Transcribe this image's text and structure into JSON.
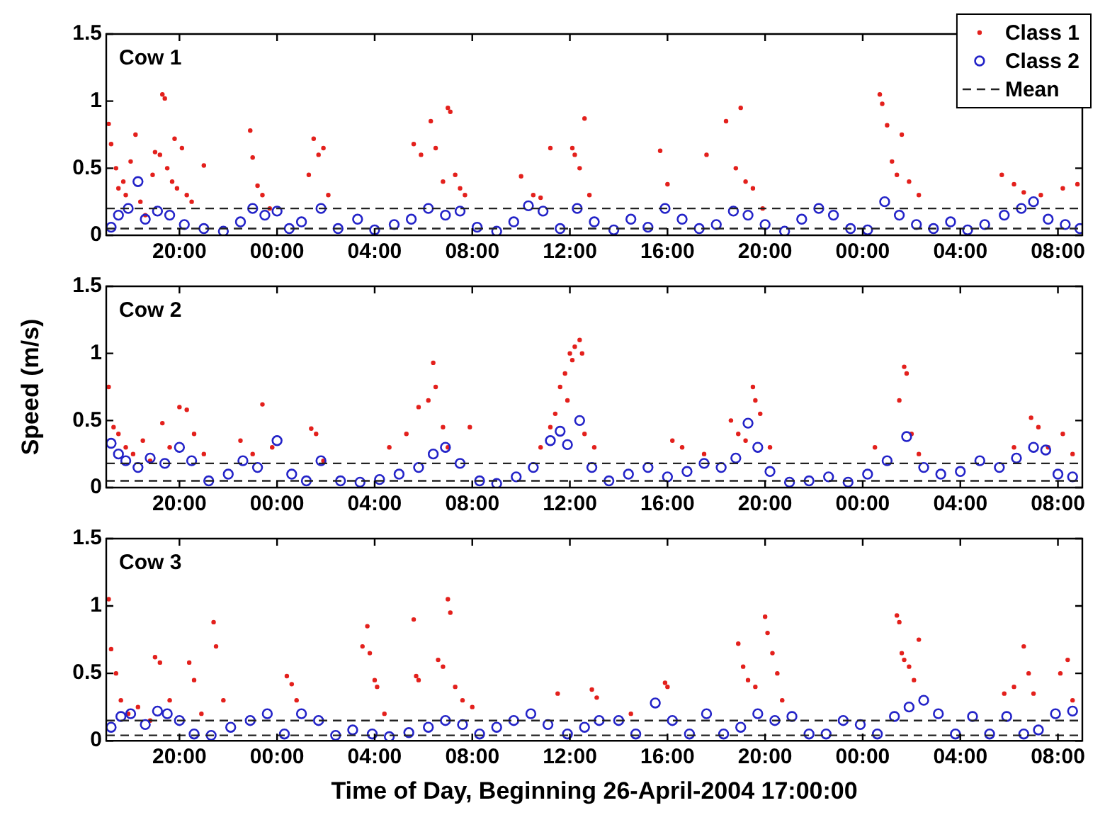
{
  "chart_data": [
    {
      "type": "scatter",
      "title": "Cow 1",
      "xlim": [
        "2004-04-26T17:00",
        "2004-04-28T09:00"
      ],
      "xticks": [
        {
          "value": "2004-04-26T20:00",
          "label": "20:00"
        },
        {
          "value": "2004-04-27T00:00",
          "label": "00:00"
        },
        {
          "value": "2004-04-27T04:00",
          "label": "04:00"
        },
        {
          "value": "2004-04-27T08:00",
          "label": "08:00"
        },
        {
          "value": "2004-04-27T12:00",
          "label": "12:00"
        },
        {
          "value": "2004-04-27T16:00",
          "label": "16:00"
        },
        {
          "value": "2004-04-27T20:00",
          "label": "20:00"
        },
        {
          "value": "2004-04-28T00:00",
          "label": "00:00"
        },
        {
          "value": "2004-04-28T04:00",
          "label": "04:00"
        },
        {
          "value": "2004-04-28T08:00",
          "label": "08:00"
        }
      ],
      "ylim": [
        0,
        1.5
      ],
      "yticks": [
        0,
        0.5,
        1,
        1.5
      ],
      "marker": "circle",
      "legend": "top right",
      "series": [
        {
          "name": "Class 1",
          "color": "#e3201c",
          "x": [
            "2004-04-26T17:06",
            "2004-04-26T17:12",
            "2004-04-26T17:24",
            "2004-04-26T17:30",
            "2004-04-26T17:42",
            "2004-04-26T17:48",
            "2004-04-26T18:00",
            "2004-04-26T18:12",
            "2004-04-26T18:24",
            "2004-04-26T18:36",
            "2004-04-26T18:54",
            "2004-04-26T19:00",
            "2004-04-26T19:12",
            "2004-04-26T19:18",
            "2004-04-26T19:24",
            "2004-04-26T19:30",
            "2004-04-26T19:42",
            "2004-04-26T19:48",
            "2004-04-26T19:54",
            "2004-04-26T20:06",
            "2004-04-26T20:18",
            "2004-04-26T20:30",
            "2004-04-26T21:00",
            "2004-04-26T22:54",
            "2004-04-26T23:00",
            "2004-04-26T23:12",
            "2004-04-26T23:24",
            "2004-04-26T23:42",
            "2004-04-27T01:18",
            "2004-04-27T01:30",
            "2004-04-27T01:42",
            "2004-04-27T01:54",
            "2004-04-27T02:06",
            "2004-04-27T05:36",
            "2004-04-27T05:54",
            "2004-04-27T06:18",
            "2004-04-27T06:30",
            "2004-04-27T06:48",
            "2004-04-27T07:00",
            "2004-04-27T07:06",
            "2004-04-27T07:18",
            "2004-04-27T07:30",
            "2004-04-27T07:42",
            "2004-04-27T10:00",
            "2004-04-27T10:30",
            "2004-04-27T10:48",
            "2004-04-27T11:12",
            "2004-04-27T12:06",
            "2004-04-27T12:12",
            "2004-04-27T12:24",
            "2004-04-27T12:36",
            "2004-04-27T12:48",
            "2004-04-27T15:42",
            "2004-04-27T16:00",
            "2004-04-27T17:36",
            "2004-04-27T18:24",
            "2004-04-27T18:48",
            "2004-04-27T19:00",
            "2004-04-27T19:12",
            "2004-04-27T19:30",
            "2004-04-27T19:54",
            "2004-04-28T00:42",
            "2004-04-28T00:48",
            "2004-04-28T01:00",
            "2004-04-28T01:12",
            "2004-04-28T01:24",
            "2004-04-28T01:36",
            "2004-04-28T01:54",
            "2004-04-28T02:18",
            "2004-04-28T05:42",
            "2004-04-28T06:12",
            "2004-04-28T06:36",
            "2004-04-28T07:18",
            "2004-04-28T08:12",
            "2004-04-28T08:48"
          ],
          "values": [
            0.83,
            0.68,
            0.5,
            0.35,
            0.4,
            0.3,
            0.55,
            0.75,
            0.25,
            0.15,
            0.45,
            0.62,
            0.6,
            1.05,
            1.02,
            0.5,
            0.4,
            0.72,
            0.35,
            0.65,
            0.3,
            0.25,
            0.52,
            0.78,
            0.58,
            0.37,
            0.3,
            0.2,
            0.45,
            0.72,
            0.6,
            0.65,
            0.3,
            0.68,
            0.6,
            0.85,
            0.65,
            0.4,
            0.95,
            0.92,
            0.45,
            0.35,
            0.3,
            0.44,
            0.3,
            0.28,
            0.65,
            0.65,
            0.6,
            0.5,
            0.87,
            0.3,
            0.63,
            0.38,
            0.6,
            0.85,
            0.5,
            0.95,
            0.4,
            0.35,
            0.2,
            1.05,
            0.98,
            0.82,
            0.55,
            0.45,
            0.75,
            0.4,
            0.3,
            0.45,
            0.38,
            0.32,
            0.3,
            0.35,
            0.38
          ]
        },
        {
          "name": "Class 2",
          "color": "#2323c8",
          "x": [
            "2004-04-26T17:12",
            "2004-04-26T17:30",
            "2004-04-26T17:54",
            "2004-04-26T18:18",
            "2004-04-26T18:36",
            "2004-04-26T19:06",
            "2004-04-26T19:36",
            "2004-04-26T20:12",
            "2004-04-26T21:00",
            "2004-04-26T21:48",
            "2004-04-26T22:30",
            "2004-04-26T23:00",
            "2004-04-26T23:30",
            "2004-04-27T00:00",
            "2004-04-27T00:30",
            "2004-04-27T01:00",
            "2004-04-27T01:48",
            "2004-04-27T02:30",
            "2004-04-27T03:18",
            "2004-04-27T04:00",
            "2004-04-27T04:48",
            "2004-04-27T05:30",
            "2004-04-27T06:12",
            "2004-04-27T06:54",
            "2004-04-27T07:30",
            "2004-04-27T08:12",
            "2004-04-27T09:00",
            "2004-04-27T09:42",
            "2004-04-27T10:18",
            "2004-04-27T10:54",
            "2004-04-27T11:36",
            "2004-04-27T12:18",
            "2004-04-27T13:00",
            "2004-04-27T13:48",
            "2004-04-27T14:30",
            "2004-04-27T15:12",
            "2004-04-27T15:54",
            "2004-04-27T16:36",
            "2004-04-27T17:18",
            "2004-04-27T18:00",
            "2004-04-27T18:42",
            "2004-04-27T19:18",
            "2004-04-27T20:00",
            "2004-04-27T20:48",
            "2004-04-27T21:30",
            "2004-04-27T22:12",
            "2004-04-27T22:48",
            "2004-04-27T23:30",
            "2004-04-28T00:12",
            "2004-04-28T00:54",
            "2004-04-28T01:30",
            "2004-04-28T02:12",
            "2004-04-28T02:54",
            "2004-04-28T03:36",
            "2004-04-28T04:18",
            "2004-04-28T05:00",
            "2004-04-28T05:48",
            "2004-04-28T06:30",
            "2004-04-28T07:00",
            "2004-04-28T07:36",
            "2004-04-28T08:18",
            "2004-04-28T08:54"
          ],
          "values": [
            0.06,
            0.15,
            0.2,
            0.4,
            0.12,
            0.18,
            0.15,
            0.08,
            0.05,
            0.03,
            0.1,
            0.2,
            0.15,
            0.18,
            0.05,
            0.1,
            0.2,
            0.05,
            0.12,
            0.04,
            0.08,
            0.12,
            0.2,
            0.15,
            0.18,
            0.06,
            0.03,
            0.1,
            0.22,
            0.18,
            0.05,
            0.2,
            0.1,
            0.04,
            0.12,
            0.06,
            0.2,
            0.12,
            0.05,
            0.08,
            0.18,
            0.15,
            0.08,
            0.03,
            0.12,
            0.2,
            0.15,
            0.05,
            0.04,
            0.25,
            0.15,
            0.08,
            0.05,
            0.1,
            0.04,
            0.08,
            0.15,
            0.2,
            0.25,
            0.12,
            0.08,
            0.05
          ]
        }
      ],
      "ref_lines": [
        {
          "axis": "y",
          "value": 0.2,
          "label": "Mean",
          "color": "#222222",
          "line_style": "dashed"
        },
        {
          "axis": "y",
          "value": 0.05,
          "color": "#222222",
          "line_style": "dashed"
        }
      ]
    },
    {
      "type": "scatter",
      "title": "Cow 2",
      "ylabel": "Speed (m/s)",
      "xlim": [
        "2004-04-26T17:00",
        "2004-04-28T09:00"
      ],
      "xticks": [
        {
          "value": "2004-04-26T20:00",
          "label": "20:00"
        },
        {
          "value": "2004-04-27T00:00",
          "label": "00:00"
        },
        {
          "value": "2004-04-27T04:00",
          "label": "04:00"
        },
        {
          "value": "2004-04-27T08:00",
          "label": "08:00"
        },
        {
          "value": "2004-04-27T12:00",
          "label": "12:00"
        },
        {
          "value": "2004-04-27T16:00",
          "label": "16:00"
        },
        {
          "value": "2004-04-27T20:00",
          "label": "20:00"
        },
        {
          "value": "2004-04-28T00:00",
          "label": "00:00"
        },
        {
          "value": "2004-04-28T04:00",
          "label": "04:00"
        },
        {
          "value": "2004-04-28T08:00",
          "label": "08:00"
        }
      ],
      "ylim": [
        0,
        1.5
      ],
      "yticks": [
        0,
        0.5,
        1,
        1.5
      ],
      "marker": "circle",
      "series": [
        {
          "color": "#e3201c",
          "x": [
            "2004-04-26T17:06",
            "2004-04-26T17:18",
            "2004-04-26T17:30",
            "2004-04-26T17:48",
            "2004-04-26T18:06",
            "2004-04-26T18:30",
            "2004-04-26T18:48",
            "2004-04-26T19:18",
            "2004-04-26T19:36",
            "2004-04-26T20:00",
            "2004-04-26T20:18",
            "2004-04-26T20:36",
            "2004-04-26T21:00",
            "2004-04-26T22:30",
            "2004-04-26T23:00",
            "2004-04-26T23:24",
            "2004-04-26T23:48",
            "2004-04-27T01:24",
            "2004-04-27T01:36",
            "2004-04-27T01:54",
            "2004-04-27T04:36",
            "2004-04-27T05:18",
            "2004-04-27T05:48",
            "2004-04-27T06:12",
            "2004-04-27T06:24",
            "2004-04-27T06:30",
            "2004-04-27T06:48",
            "2004-04-27T07:00",
            "2004-04-27T07:54",
            "2004-04-27T10:48",
            "2004-04-27T11:12",
            "2004-04-27T11:24",
            "2004-04-27T11:36",
            "2004-04-27T11:48",
            "2004-04-27T11:54",
            "2004-04-27T12:00",
            "2004-04-27T12:06",
            "2004-04-27T12:12",
            "2004-04-27T12:24",
            "2004-04-27T12:30",
            "2004-04-27T12:36",
            "2004-04-27T13:00",
            "2004-04-27T16:12",
            "2004-04-27T16:36",
            "2004-04-27T17:30",
            "2004-04-27T18:36",
            "2004-04-27T18:54",
            "2004-04-27T19:12",
            "2004-04-27T19:30",
            "2004-04-27T19:36",
            "2004-04-27T19:48",
            "2004-04-27T20:12",
            "2004-04-28T00:30",
            "2004-04-28T01:30",
            "2004-04-28T01:42",
            "2004-04-28T01:48",
            "2004-04-28T02:00",
            "2004-04-28T02:18",
            "2004-04-28T06:12",
            "2004-04-28T06:54",
            "2004-04-28T07:12",
            "2004-04-28T07:36",
            "2004-04-28T08:12",
            "2004-04-28T08:36"
          ],
          "values": [
            0.75,
            0.45,
            0.4,
            0.3,
            0.25,
            0.35,
            0.2,
            0.48,
            0.3,
            0.6,
            0.58,
            0.4,
            0.25,
            0.35,
            0.25,
            0.62,
            0.3,
            0.44,
            0.4,
            0.2,
            0.3,
            0.4,
            0.6,
            0.65,
            0.93,
            0.75,
            0.45,
            0.3,
            0.45,
            0.3,
            0.45,
            0.55,
            0.75,
            0.85,
            0.65,
            1.0,
            0.95,
            1.05,
            1.1,
            1.0,
            0.4,
            0.3,
            0.35,
            0.3,
            0.25,
            0.5,
            0.4,
            0.35,
            0.75,
            0.65,
            0.55,
            0.3,
            0.3,
            0.65,
            0.9,
            0.85,
            0.4,
            0.25,
            0.3,
            0.52,
            0.45,
            0.3,
            0.4,
            0.25
          ]
        },
        {
          "color": "#2323c8",
          "x": [
            "2004-04-26T17:12",
            "2004-04-26T17:30",
            "2004-04-26T17:48",
            "2004-04-26T18:18",
            "2004-04-26T18:48",
            "2004-04-26T19:24",
            "2004-04-26T20:00",
            "2004-04-26T20:30",
            "2004-04-26T21:12",
            "2004-04-26T22:00",
            "2004-04-26T22:36",
            "2004-04-26T23:12",
            "2004-04-27T00:00",
            "2004-04-27T00:36",
            "2004-04-27T01:12",
            "2004-04-27T01:48",
            "2004-04-27T02:36",
            "2004-04-27T03:24",
            "2004-04-27T04:12",
            "2004-04-27T05:00",
            "2004-04-27T05:48",
            "2004-04-27T06:24",
            "2004-04-27T06:54",
            "2004-04-27T07:30",
            "2004-04-27T08:18",
            "2004-04-27T09:00",
            "2004-04-27T09:48",
            "2004-04-27T10:30",
            "2004-04-27T11:12",
            "2004-04-27T11:36",
            "2004-04-27T11:54",
            "2004-04-27T12:24",
            "2004-04-27T12:54",
            "2004-04-27T13:36",
            "2004-04-27T14:24",
            "2004-04-27T15:12",
            "2004-04-27T16:00",
            "2004-04-27T16:48",
            "2004-04-27T17:30",
            "2004-04-27T18:12",
            "2004-04-27T18:48",
            "2004-04-27T19:18",
            "2004-04-27T19:42",
            "2004-04-27T20:12",
            "2004-04-27T21:00",
            "2004-04-27T21:48",
            "2004-04-27T22:36",
            "2004-04-27T23:24",
            "2004-04-28T00:12",
            "2004-04-28T01:00",
            "2004-04-28T01:48",
            "2004-04-28T02:30",
            "2004-04-28T03:12",
            "2004-04-28T04:00",
            "2004-04-28T04:48",
            "2004-04-28T05:36",
            "2004-04-28T06:18",
            "2004-04-28T07:00",
            "2004-04-28T07:30",
            "2004-04-28T08:00",
            "2004-04-28T08:36"
          ],
          "values": [
            0.33,
            0.25,
            0.2,
            0.15,
            0.22,
            0.18,
            0.3,
            0.2,
            0.05,
            0.1,
            0.2,
            0.15,
            0.35,
            0.1,
            0.05,
            0.2,
            0.05,
            0.04,
            0.06,
            0.1,
            0.15,
            0.25,
            0.3,
            0.18,
            0.05,
            0.03,
            0.08,
            0.15,
            0.35,
            0.42,
            0.32,
            0.5,
            0.15,
            0.05,
            0.1,
            0.15,
            0.08,
            0.12,
            0.18,
            0.15,
            0.22,
            0.48,
            0.3,
            0.12,
            0.04,
            0.05,
            0.08,
            0.04,
            0.1,
            0.2,
            0.38,
            0.15,
            0.1,
            0.12,
            0.2,
            0.15,
            0.22,
            0.3,
            0.28,
            0.1,
            0.08
          ]
        }
      ],
      "ref_lines": [
        {
          "axis": "y",
          "value": 0.18,
          "color": "#222222",
          "line_style": "dashed"
        },
        {
          "axis": "y",
          "value": 0.05,
          "color": "#222222",
          "line_style": "dashed"
        }
      ]
    },
    {
      "type": "scatter",
      "title": "Cow 3",
      "xlabel": "Time of Day, Beginning 26-April-2004 17:00:00",
      "xlim": [
        "2004-04-26T17:00",
        "2004-04-28T09:00"
      ],
      "xticks": [
        {
          "value": "2004-04-26T20:00",
          "label": "20:00"
        },
        {
          "value": "2004-04-27T00:00",
          "label": "00:00"
        },
        {
          "value": "2004-04-27T04:00",
          "label": "04:00"
        },
        {
          "value": "2004-04-27T08:00",
          "label": "08:00"
        },
        {
          "value": "2004-04-27T12:00",
          "label": "12:00"
        },
        {
          "value": "2004-04-27T16:00",
          "label": "16:00"
        },
        {
          "value": "2004-04-27T20:00",
          "label": "20:00"
        },
        {
          "value": "2004-04-28T00:00",
          "label": "00:00"
        },
        {
          "value": "2004-04-28T04:00",
          "label": "04:00"
        },
        {
          "value": "2004-04-28T08:00",
          "label": "08:00"
        }
      ],
      "ylim": [
        0,
        1.5
      ],
      "yticks": [
        0,
        0.5,
        1,
        1.5
      ],
      "marker": "circle",
      "series": [
        {
          "color": "#e3201c",
          "x": [
            "2004-04-26T17:06",
            "2004-04-26T17:12",
            "2004-04-26T17:24",
            "2004-04-26T17:36",
            "2004-04-26T17:54",
            "2004-04-26T18:18",
            "2004-04-26T18:48",
            "2004-04-26T19:00",
            "2004-04-26T19:12",
            "2004-04-26T19:36",
            "2004-04-26T20:24",
            "2004-04-26T20:36",
            "2004-04-26T20:54",
            "2004-04-26T21:24",
            "2004-04-26T21:30",
            "2004-04-26T21:48",
            "2004-04-27T00:24",
            "2004-04-27T00:36",
            "2004-04-27T00:48",
            "2004-04-27T03:30",
            "2004-04-27T03:42",
            "2004-04-27T03:48",
            "2004-04-27T04:00",
            "2004-04-27T04:06",
            "2004-04-27T04:24",
            "2004-04-27T05:36",
            "2004-04-27T05:42",
            "2004-04-27T05:48",
            "2004-04-27T06:36",
            "2004-04-27T06:48",
            "2004-04-27T07:00",
            "2004-04-27T07:06",
            "2004-04-27T07:18",
            "2004-04-27T07:36",
            "2004-04-27T08:00",
            "2004-04-27T11:30",
            "2004-04-27T12:54",
            "2004-04-27T13:06",
            "2004-04-27T14:30",
            "2004-04-27T15:54",
            "2004-04-27T16:00",
            "2004-04-27T18:54",
            "2004-04-27T19:06",
            "2004-04-27T19:18",
            "2004-04-27T19:36",
            "2004-04-27T20:00",
            "2004-04-27T20:06",
            "2004-04-27T20:18",
            "2004-04-27T20:30",
            "2004-04-27T20:42",
            "2004-04-28T01:24",
            "2004-04-28T01:30",
            "2004-04-28T01:36",
            "2004-04-28T01:42",
            "2004-04-28T01:54",
            "2004-04-28T02:06",
            "2004-04-28T02:18",
            "2004-04-28T05:48",
            "2004-04-28T06:12",
            "2004-04-28T06:36",
            "2004-04-28T06:48",
            "2004-04-28T07:00",
            "2004-04-28T08:06",
            "2004-04-28T08:24",
            "2004-04-28T08:36"
          ],
          "values": [
            1.05,
            0.68,
            0.5,
            0.3,
            0.2,
            0.25,
            0.15,
            0.62,
            0.58,
            0.3,
            0.58,
            0.45,
            0.2,
            0.88,
            0.7,
            0.3,
            0.48,
            0.42,
            0.3,
            0.7,
            0.85,
            0.65,
            0.45,
            0.4,
            0.2,
            0.9,
            0.48,
            0.45,
            0.6,
            0.55,
            1.05,
            0.95,
            0.4,
            0.3,
            0.25,
            0.35,
            0.38,
            0.32,
            0.2,
            0.43,
            0.4,
            0.72,
            0.55,
            0.45,
            0.4,
            0.92,
            0.8,
            0.65,
            0.5,
            0.3,
            0.93,
            0.88,
            0.65,
            0.6,
            0.55,
            0.45,
            0.75,
            0.35,
            0.4,
            0.7,
            0.5,
            0.35,
            0.5,
            0.6,
            0.3
          ]
        },
        {
          "color": "#2323c8",
          "x": [
            "2004-04-26T17:12",
            "2004-04-26T17:36",
            "2004-04-26T18:00",
            "2004-04-26T18:36",
            "2004-04-26T19:06",
            "2004-04-26T19:30",
            "2004-04-26T20:00",
            "2004-04-26T20:36",
            "2004-04-26T21:18",
            "2004-04-26T22:06",
            "2004-04-26T22:54",
            "2004-04-26T23:36",
            "2004-04-27T00:18",
            "2004-04-27T01:00",
            "2004-04-27T01:42",
            "2004-04-27T02:24",
            "2004-04-27T03:06",
            "2004-04-27T03:54",
            "2004-04-27T04:36",
            "2004-04-27T05:24",
            "2004-04-27T06:12",
            "2004-04-27T06:54",
            "2004-04-27T07:36",
            "2004-04-27T08:18",
            "2004-04-27T09:00",
            "2004-04-27T09:42",
            "2004-04-27T10:24",
            "2004-04-27T11:06",
            "2004-04-27T11:54",
            "2004-04-27T12:36",
            "2004-04-27T13:12",
            "2004-04-27T14:00",
            "2004-04-27T14:42",
            "2004-04-27T15:30",
            "2004-04-27T16:12",
            "2004-04-27T16:54",
            "2004-04-27T17:36",
            "2004-04-27T18:18",
            "2004-04-27T19:00",
            "2004-04-27T19:42",
            "2004-04-27T20:24",
            "2004-04-27T21:06",
            "2004-04-27T21:48",
            "2004-04-27T22:30",
            "2004-04-27T23:12",
            "2004-04-27T23:54",
            "2004-04-28T00:36",
            "2004-04-28T01:18",
            "2004-04-28T01:54",
            "2004-04-28T02:30",
            "2004-04-28T03:06",
            "2004-04-28T03:48",
            "2004-04-28T04:30",
            "2004-04-28T05:12",
            "2004-04-28T05:54",
            "2004-04-28T06:36",
            "2004-04-28T07:12",
            "2004-04-28T07:54",
            "2004-04-28T08:36"
          ],
          "values": [
            0.1,
            0.18,
            0.2,
            0.12,
            0.22,
            0.2,
            0.15,
            0.05,
            0.04,
            0.1,
            0.15,
            0.2,
            0.05,
            0.2,
            0.15,
            0.04,
            0.08,
            0.05,
            0.03,
            0.06,
            0.1,
            0.15,
            0.12,
            0.05,
            0.1,
            0.15,
            0.2,
            0.12,
            0.05,
            0.1,
            0.15,
            0.15,
            0.05,
            0.28,
            0.15,
            0.05,
            0.2,
            0.05,
            0.1,
            0.2,
            0.15,
            0.18,
            0.05,
            0.05,
            0.15,
            0.12,
            0.05,
            0.18,
            0.25,
            0.3,
            0.2,
            0.05,
            0.18,
            0.05,
            0.18,
            0.05,
            0.08,
            0.2,
            0.22
          ]
        }
      ],
      "ref_lines": [
        {
          "axis": "y",
          "value": 0.15,
          "color": "#222222",
          "line_style": "dashed"
        },
        {
          "axis": "y",
          "value": 0.04,
          "color": "#222222",
          "line_style": "dashed"
        }
      ]
    }
  ]
}
